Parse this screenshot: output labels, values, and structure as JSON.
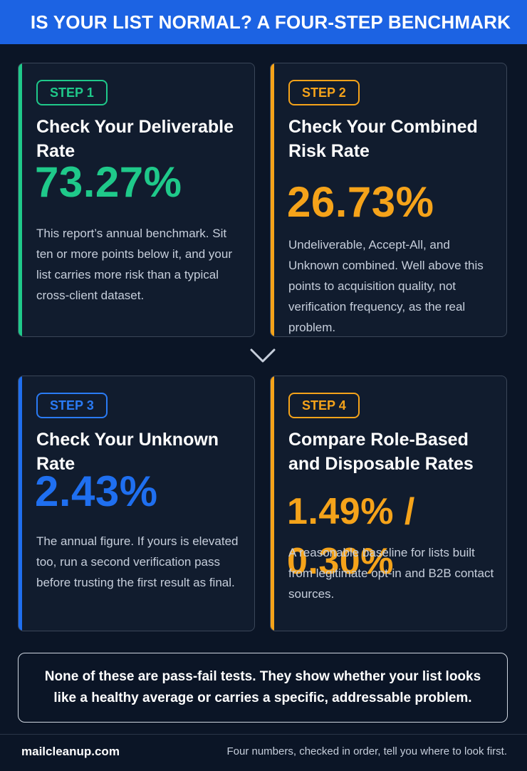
{
  "header": {
    "title": "IS YOUR LIST NORMAL? A FOUR-STEP BENCHMARK"
  },
  "steps": [
    {
      "badge": "STEP 1",
      "title": "Check Your Deliverable Rate",
      "value": "73.27%",
      "description": "This report’s annual benchmark. Sit ten or more points below it, and your list carries more risk than a typical cross-client dataset.",
      "accent_color": "#1fc98a"
    },
    {
      "badge": "STEP 2",
      "title": "Check Your Combined Risk Rate",
      "value": "26.73%",
      "description": "Undeliverable, Accept-All, and Unknown combined. Well above this points to acquisition quality, not verification frequency, as the real problem.",
      "accent_color": "#f5a31a"
    },
    {
      "badge": "STEP 3",
      "title": "Check Your Unknown Rate",
      "value": "2.43%",
      "description": "The annual figure. If yours is elevated too, run a second verification pass before trusting the first result as final.",
      "accent_color": "#1f6ff0"
    },
    {
      "badge": "STEP 4",
      "title": "Compare Role-Based and Disposable Rates",
      "value": "1.49% / 0.30%",
      "description": "A reasonable baseline for lists built from legitimate opt-in and B2B contact sources.",
      "accent_color": "#f5a31a"
    }
  ],
  "connector_icon": "chevron-down-icon",
  "note": "None of these are pass-fail tests. They show whether your list looks like a healthy average or carries a specific, addressable problem.",
  "footer": {
    "site": "mailcleanup.com",
    "tagline": "Four numbers, checked in order, tell you where to look first."
  }
}
